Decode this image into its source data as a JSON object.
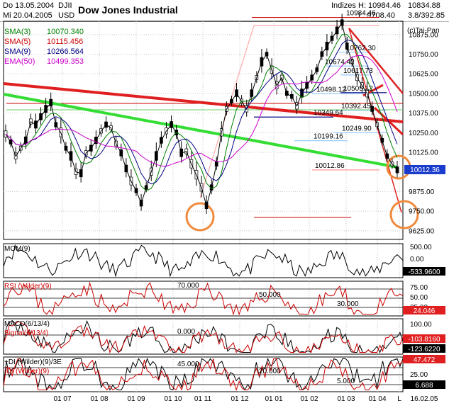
{
  "header": {
    "date_from": "Do 13.05.2004",
    "date_to": "Mi 20.04.2005",
    "symbol": "DJII",
    "currency": "USD",
    "title": "Dow Jones Industrial",
    "category": "Indizes",
    "high": "H: 10984.46",
    "low": "L: 9708.40",
    "close": "10834.88",
    "change": "3.8/392.85",
    "copyright": "(c)Tai-Pan"
  },
  "legend": [
    {
      "name": "SMA(3)",
      "value": "10070.340",
      "color": "#008000"
    },
    {
      "name": "SMA(5)",
      "value": "10115.456",
      "color": "#cc0000"
    },
    {
      "name": "SMA(9)",
      "value": "10266.564",
      "color": "#000080"
    },
    {
      "name": "EMA(50)",
      "value": "10499.353",
      "color": "#cc00cc"
    }
  ],
  "chart_data": {
    "type": "line",
    "title": "Dow Jones Industrial",
    "x_ticks": [
      "01 07",
      "01 08",
      "01 09",
      "01 10",
      "01 11",
      "01 12",
      "01 01",
      "01 02",
      "01 03",
      "01 04",
      "L",
      "16.02.05"
    ],
    "price_axis": {
      "ticks": [
        10875,
        10750,
        10625,
        10500,
        10375,
        10250,
        10125,
        9875,
        9750,
        9625
      ],
      "tick_labels": [
        "10875.00",
        "10750.00",
        "10625.00",
        "10500.00",
        "10375.00",
        "10250.00",
        "10125.00",
        "9875.00",
        "9750.00",
        "9625.00"
      ],
      "ylim": [
        9570,
        10960
      ],
      "last_value": "10012.36"
    },
    "price_series": [
      10240,
      10190,
      10100,
      10150,
      10200,
      10320,
      10300,
      10350,
      10400,
      10440,
      10300,
      10250,
      10150,
      10100,
      10000,
      9990,
      10120,
      10150,
      10200,
      10260,
      10300,
      10280,
      10180,
      10120,
      10020,
      9940,
      9880,
      9800,
      9900,
      10000,
      10100,
      10200,
      10260,
      10300,
      10250,
      10120,
      10130,
      10050,
      9980,
      9900,
      9785,
      9900,
      10050,
      10250,
      10400,
      10450,
      10500,
      10450,
      10400,
      10500,
      10600,
      10700,
      10750,
      10650,
      10550,
      10600,
      10500,
      10480,
      10420,
      10500,
      10550,
      10600,
      10650,
      10750,
      10800,
      10850,
      10900,
      10950,
      10800,
      10700,
      10600,
      10550,
      10500,
      10400,
      10300,
      10200,
      10100,
      10050,
      10012
    ],
    "annotations": [
      {
        "label": "10984.46",
        "value": 10984.46
      },
      {
        "label": "10762.30",
        "value": 10762.3
      },
      {
        "label": "10674.42",
        "value": 10674.42
      },
      {
        "label": "10617.73",
        "value": 10617.73
      },
      {
        "label": "10505.12",
        "value": 10505.12
      },
      {
        "label": "10498.12",
        "value": 10498.12
      },
      {
        "label": "10392.45",
        "value": 10392.45
      },
      {
        "label": "10349.64",
        "value": 10349.64
      },
      {
        "label": "10249.90",
        "value": 10249.9
      },
      {
        "label": "10199.16",
        "value": 10199.16
      },
      {
        "label": "10012.86",
        "value": 10012.86
      }
    ],
    "indicators": [
      {
        "name": "MOM(9)",
        "color": "#000000",
        "right_ticks": [
          "500.00",
          "0.00"
        ],
        "last_value": "-533.9600",
        "levels": []
      },
      {
        "name": "RSI (Wilder)(9)",
        "color": "#cc0000",
        "right_ticks": [
          "75.00",
          "50.00",
          "25.00"
        ],
        "last_value": "24.046",
        "levels": [
          {
            "label": "70.000",
            "value": 70
          },
          {
            "label": "50.000",
            "value": 50
          },
          {
            "label": "30.000",
            "value": 30
          }
        ]
      },
      {
        "name": "MACD(6/13/4)",
        "name2": "Signal(6/13/4)",
        "color": "#cc0000",
        "right_ticks": [
          "100.00",
          "0.00"
        ],
        "last_value": "-103.8160",
        "last_value2": "-123.6220",
        "levels": [
          {
            "label": "0.000",
            "value": 0
          }
        ]
      },
      {
        "name": "+DI (Wilder)(9)/3E",
        "name2": "-DI (Wilder)(9)",
        "color": "#000000",
        "right_ticks": [
          "25.00"
        ],
        "last_value": "47.472",
        "last_value2": "6.688",
        "levels": [
          {
            "label": "45.000",
            "value": 45
          },
          {
            "label": "20.000",
            "value": 20
          },
          {
            "label": "5.000",
            "value": 5
          }
        ]
      }
    ]
  }
}
